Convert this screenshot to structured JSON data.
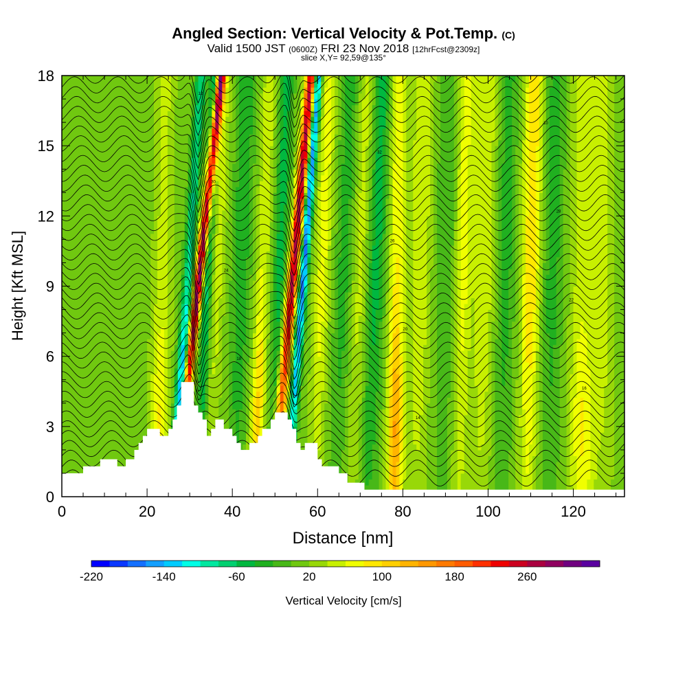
{
  "header": {
    "title": "Angled Section: Vertical Velocity & Pot.Temp.",
    "title_units": "(C)",
    "subtitle_valid": "Valid 1500 JST",
    "subtitle_utc": "(0600Z)",
    "subtitle_date": "FRI 23 Nov 2018",
    "subtitle_fcst": "[12hrFcst@2309z]",
    "slice": "slice X,Y= 92,59@135°"
  },
  "chart_data": {
    "type": "heatmap",
    "xlabel": "Distance [nm]",
    "ylabel": "Height [Kft MSL]",
    "xlim": [
      0,
      132
    ],
    "ylim": [
      0,
      18
    ],
    "x_ticks": [
      0,
      20,
      40,
      60,
      80,
      100,
      120
    ],
    "y_ticks": [
      0,
      3,
      6,
      9,
      12,
      15,
      18
    ],
    "colorbar": {
      "label": "Vertical Velocity [cm/s]",
      "tick_labels": [
        "-220",
        "-140",
        "-60",
        "20",
        "100",
        "180",
        "260"
      ],
      "tick_values": [
        -220,
        -140,
        -60,
        20,
        100,
        180,
        260
      ],
      "range": [
        -220,
        340
      ],
      "colors": [
        "#0000ff",
        "#0a38ff",
        "#1470ff",
        "#14a0ff",
        "#00ccff",
        "#00ffe6",
        "#00e8a0",
        "#00d070",
        "#00b840",
        "#20b020",
        "#48b818",
        "#70c810",
        "#98d808",
        "#c8f000",
        "#f0ff00",
        "#ffe800",
        "#ffd000",
        "#ffb400",
        "#ff9800",
        "#ff7a00",
        "#ff5c00",
        "#ff3000",
        "#ee0000",
        "#cc0020",
        "#aa0040",
        "#900060",
        "#700080",
        "#5a00a0"
      ]
    },
    "terrain_kft": [
      [
        0,
        1.0
      ],
      [
        5,
        1.0
      ],
      [
        5,
        1.3
      ],
      [
        9,
        1.3
      ],
      [
        9,
        1.6
      ],
      [
        13,
        1.6
      ],
      [
        13,
        1.3
      ],
      [
        15,
        1.3
      ],
      [
        15,
        1.6
      ],
      [
        17,
        1.6
      ],
      [
        17,
        2.0
      ],
      [
        18,
        2.0
      ],
      [
        18,
        2.3
      ],
      [
        19,
        2.3
      ],
      [
        19,
        2.6
      ],
      [
        20,
        2.6
      ],
      [
        20,
        2.9
      ],
      [
        23,
        2.9
      ],
      [
        23,
        2.6
      ],
      [
        25,
        2.6
      ],
      [
        25,
        2.9
      ],
      [
        26,
        2.9
      ],
      [
        26,
        3.3
      ],
      [
        27,
        3.3
      ],
      [
        27,
        3.9
      ],
      [
        28,
        3.9
      ],
      [
        28,
        4.9
      ],
      [
        31,
        4.9
      ],
      [
        31,
        3.9
      ],
      [
        32,
        3.9
      ],
      [
        32,
        3.6
      ],
      [
        33,
        3.6
      ],
      [
        33,
        3.3
      ],
      [
        34,
        3.3
      ],
      [
        34,
        2.6
      ],
      [
        35,
        2.6
      ],
      [
        35,
        2.9
      ],
      [
        36,
        2.9
      ],
      [
        36,
        3.3
      ],
      [
        38,
        3.3
      ],
      [
        38,
        2.9
      ],
      [
        40,
        2.9
      ],
      [
        40,
        2.6
      ],
      [
        41,
        2.6
      ],
      [
        41,
        2.3
      ],
      [
        42,
        2.3
      ],
      [
        42,
        2.0
      ],
      [
        44,
        2.0
      ],
      [
        44,
        2.3
      ],
      [
        46,
        2.3
      ],
      [
        46,
        2.6
      ],
      [
        47,
        2.6
      ],
      [
        47,
        2.9
      ],
      [
        49,
        2.9
      ],
      [
        49,
        3.3
      ],
      [
        50,
        3.3
      ],
      [
        50,
        3.6
      ],
      [
        53,
        3.6
      ],
      [
        53,
        3.3
      ],
      [
        54,
        3.3
      ],
      [
        54,
        2.9
      ],
      [
        55,
        2.9
      ],
      [
        55,
        2.3
      ],
      [
        56,
        2.3
      ],
      [
        56,
        2.0
      ],
      [
        57,
        2.0
      ],
      [
        57,
        2.3
      ],
      [
        60,
        2.3
      ],
      [
        60,
        1.6
      ],
      [
        61,
        1.6
      ],
      [
        61,
        1.3
      ],
      [
        65,
        1.3
      ],
      [
        65,
        1.0
      ],
      [
        67,
        1.0
      ],
      [
        67,
        0.6
      ],
      [
        71,
        0.6
      ],
      [
        71,
        0.3
      ],
      [
        132,
        0.3
      ]
    ],
    "contour_label_values": [
      "10",
      "12",
      "14",
      "16",
      "18",
      "20",
      "22",
      "24",
      "26",
      "28",
      "30",
      "32"
    ]
  }
}
